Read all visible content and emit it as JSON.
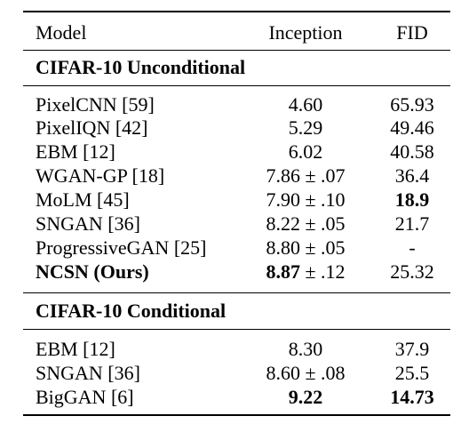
{
  "columns": [
    "Model",
    "Inception",
    "FID"
  ],
  "sections": [
    {
      "title": "CIFAR-10 Unconditional",
      "rows": [
        {
          "model": "PixelCNN [59]",
          "inception": "4.60",
          "inc_pm": "",
          "fid": "65.93"
        },
        {
          "model": "PixelIQN [42]",
          "inception": "5.29",
          "inc_pm": "",
          "fid": "49.46"
        },
        {
          "model": "EBM [12]",
          "inception": "6.02",
          "inc_pm": "",
          "fid": "40.58"
        },
        {
          "model": "WGAN-GP [18]",
          "inception": "7.86",
          "inc_pm": " ± .07",
          "fid": "36.4"
        },
        {
          "model": "MoLM [45]",
          "inception": "7.90",
          "inc_pm": " ± .10",
          "fid": "18.9"
        },
        {
          "model": "SNGAN [36]",
          "inception": "8.22",
          "inc_pm": " ± .05",
          "fid": "21.7"
        },
        {
          "model": "ProgressiveGAN [25]",
          "inception": "8.80",
          "inc_pm": " ± .05",
          "fid": "-"
        },
        {
          "model": "NCSN (Ours)",
          "inception": "8.87",
          "inc_pm": " ± .12",
          "fid": "25.32"
        }
      ]
    },
    {
      "title": "CIFAR-10 Conditional",
      "rows": [
        {
          "model": "EBM [12]",
          "inception": "8.30",
          "inc_pm": "",
          "fid": "37.9"
        },
        {
          "model": "SNGAN [36]",
          "inception": "8.60",
          "inc_pm": " ± .08",
          "fid": "25.5"
        },
        {
          "model": "BigGAN [6]",
          "inception": "9.22",
          "inc_pm": "",
          "fid": "14.73"
        }
      ]
    }
  ]
}
